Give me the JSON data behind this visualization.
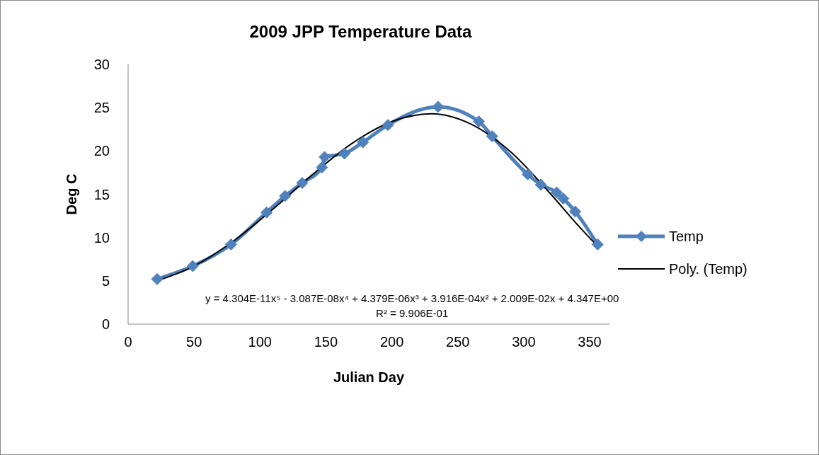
{
  "chart_data": {
    "type": "line",
    "title": "2009 JPP Temperature Data",
    "xlabel": "Julian Day",
    "ylabel": "Deg C",
    "xlim": [
      0,
      365
    ],
    "xticks": [
      0,
      50,
      100,
      150,
      200,
      250,
      300,
      350
    ],
    "ylim": [
      0,
      30
    ],
    "yticks": [
      0,
      5,
      10,
      15,
      20,
      25,
      30
    ],
    "legend": "right",
    "line_style": "solid",
    "series": [
      {
        "name": "Temp",
        "color": "#4f81bd",
        "marker": "diamond",
        "x": [
          22,
          49,
          78,
          105,
          119,
          132,
          147,
          149,
          164,
          178,
          197,
          235,
          266,
          276,
          303,
          313,
          325,
          330,
          339,
          356
        ],
        "values": [
          5.2,
          6.7,
          9.2,
          12.9,
          14.8,
          16.3,
          18.1,
          19.3,
          19.7,
          21.0,
          23.0,
          25.1,
          23.4,
          21.7,
          17.3,
          16.1,
          15.2,
          14.5,
          13.0,
          9.2
        ]
      },
      {
        "name": "Poly. (Temp)",
        "color": "#000000",
        "marker": "none",
        "x": [
          22,
          50,
          80,
          110,
          140,
          170,
          200,
          230,
          260,
          290,
          320,
          340,
          356
        ],
        "values": [
          5.0,
          6.7,
          9.6,
          13.3,
          17.3,
          20.9,
          23.4,
          24.3,
          23.1,
          19.9,
          15.1,
          11.6,
          9.0
        ]
      }
    ],
    "annotations": [
      "y = 4.304E-11x⁵ - 3.087E-08x⁴ + 4.379E-06x³ + 3.916E-04x² + 2.009E-02x + 4.347E+00",
      "R² = 9.906E-01"
    ]
  }
}
